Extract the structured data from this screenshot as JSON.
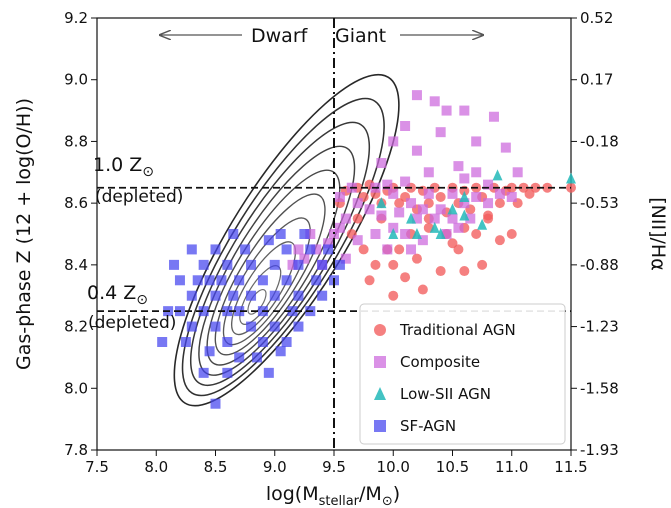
{
  "chart_data": {
    "type": "scatter",
    "title": "",
    "xlabel": "log(M",
    "xlabel_sub": "stellar",
    "xlabel_mid": "/M",
    "xlabel_sym": "⊙",
    "xlabel_end": ")",
    "ylabel_left": "Gas-phase Z (12 + log(O/H))",
    "ylabel_right": "[NII]/Hα",
    "xlim": [
      7.5,
      11.5
    ],
    "ylim": [
      7.8,
      9.2
    ],
    "x_ticks": [
      "7.5",
      "8.0",
      "8.5",
      "9.0",
      "9.5",
      "10.0",
      "10.5",
      "11.0",
      "11.5"
    ],
    "y_ticks_left": [
      "7.8",
      "8.0",
      "8.2",
      "8.4",
      "8.6",
      "8.8",
      "9.0",
      "9.2"
    ],
    "y_ticks_right": [
      "-1.93",
      "-1.58",
      "-1.23",
      "-0.88",
      "-0.53",
      "-0.18",
      "0.17",
      "0.52"
    ],
    "vline_x": 9.5,
    "hlines": [
      8.65,
      8.25
    ],
    "annotations": {
      "dwarf": "Dwarf",
      "giant": "Giant",
      "solar1_value": "1.0 Z",
      "solar1_sym": "⊙",
      "solar1_note": "(depleted)",
      "solar04_value": "0.4 Z",
      "solar04_sym": "⊙",
      "solar04_note": "(depleted)"
    },
    "legend_position": "lower-right",
    "colors": {
      "traditional": "#f25c5c",
      "composite": "#cc66dd",
      "lowsii": "#22b8b8",
      "sfagn": "#4444ee",
      "contour": "#111111"
    },
    "series": [
      {
        "name": "Traditional AGN",
        "marker": "circle",
        "points": [
          [
            9.55,
            8.6
          ],
          [
            9.6,
            8.64
          ],
          [
            9.7,
            8.65
          ],
          [
            9.75,
            8.62
          ],
          [
            9.8,
            8.66
          ],
          [
            9.85,
            8.63
          ],
          [
            9.9,
            8.6
          ],
          [
            9.95,
            8.64
          ],
          [
            10.0,
            8.65
          ],
          [
            10.05,
            8.6
          ],
          [
            10.1,
            8.62
          ],
          [
            10.15,
            8.65
          ],
          [
            10.2,
            8.58
          ],
          [
            10.25,
            8.64
          ],
          [
            10.3,
            8.6
          ],
          [
            10.35,
            8.65
          ],
          [
            10.4,
            8.62
          ],
          [
            10.45,
            8.57
          ],
          [
            10.5,
            8.65
          ],
          [
            10.55,
            8.6
          ],
          [
            10.6,
            8.64
          ],
          [
            10.65,
            8.58
          ],
          [
            10.7,
            8.65
          ],
          [
            10.75,
            8.62
          ],
          [
            10.8,
            8.56
          ],
          [
            10.85,
            8.65
          ],
          [
            10.9,
            8.6
          ],
          [
            10.95,
            8.64
          ],
          [
            11.0,
            8.65
          ],
          [
            11.05,
            8.6
          ],
          [
            11.1,
            8.65
          ],
          [
            11.15,
            8.63
          ],
          [
            11.2,
            8.65
          ],
          [
            11.3,
            8.65
          ],
          [
            11.5,
            8.65
          ],
          [
            10.6,
            8.52
          ],
          [
            10.7,
            8.5
          ],
          [
            10.9,
            8.48
          ],
          [
            11.0,
            8.5
          ],
          [
            10.45,
            8.5
          ],
          [
            10.3,
            8.52
          ],
          [
            10.15,
            8.5
          ],
          [
            10.05,
            8.45
          ],
          [
            10.0,
            8.4
          ],
          [
            9.95,
            8.45
          ],
          [
            10.2,
            8.42
          ],
          [
            10.4,
            8.38
          ],
          [
            10.55,
            8.45
          ],
          [
            10.8,
            8.55
          ],
          [
            9.85,
            8.4
          ],
          [
            9.75,
            8.45
          ],
          [
            9.65,
            8.5
          ],
          [
            9.8,
            8.35
          ],
          [
            10.1,
            8.36
          ],
          [
            10.6,
            8.38
          ],
          [
            10.0,
            8.3
          ],
          [
            10.25,
            8.32
          ],
          [
            10.75,
            8.4
          ],
          [
            10.3,
            8.55
          ],
          [
            10.5,
            8.47
          ],
          [
            9.9,
            8.55
          ],
          [
            9.7,
            8.55
          ]
        ]
      },
      {
        "name": "Composite",
        "marker": "square",
        "points": [
          [
            10.2,
            8.95
          ],
          [
            10.35,
            8.93
          ],
          [
            10.45,
            8.9
          ],
          [
            10.6,
            8.9
          ],
          [
            10.85,
            8.88
          ],
          [
            10.1,
            8.85
          ],
          [
            10.4,
            8.83
          ],
          [
            10.7,
            8.8
          ],
          [
            10.95,
            8.78
          ],
          [
            10.0,
            8.8
          ],
          [
            10.2,
            8.77
          ],
          [
            10.55,
            8.72
          ],
          [
            10.3,
            8.7
          ],
          [
            10.6,
            8.68
          ],
          [
            10.8,
            8.66
          ],
          [
            10.1,
            8.67
          ],
          [
            9.95,
            8.66
          ],
          [
            9.9,
            8.73
          ],
          [
            10.0,
            8.63
          ],
          [
            10.3,
            8.63
          ],
          [
            10.5,
            8.63
          ],
          [
            10.7,
            8.62
          ],
          [
            10.9,
            8.63
          ],
          [
            11.0,
            8.62
          ],
          [
            10.15,
            8.6
          ],
          [
            10.25,
            8.58
          ],
          [
            10.4,
            8.58
          ],
          [
            10.6,
            8.6
          ],
          [
            10.8,
            8.6
          ],
          [
            10.05,
            8.57
          ],
          [
            10.2,
            8.55
          ],
          [
            10.35,
            8.55
          ],
          [
            10.5,
            8.55
          ],
          [
            10.65,
            8.55
          ],
          [
            9.9,
            8.56
          ],
          [
            9.8,
            8.58
          ],
          [
            9.7,
            8.6
          ],
          [
            9.6,
            8.55
          ],
          [
            9.55,
            8.52
          ],
          [
            9.5,
            8.5
          ],
          [
            9.45,
            8.47
          ],
          [
            9.35,
            8.45
          ],
          [
            9.25,
            8.42
          ],
          [
            9.15,
            8.4
          ],
          [
            9.4,
            8.4
          ],
          [
            9.6,
            8.42
          ],
          [
            9.7,
            8.48
          ],
          [
            9.85,
            8.5
          ],
          [
            10.0,
            8.52
          ],
          [
            10.1,
            8.5
          ],
          [
            10.25,
            8.48
          ],
          [
            10.45,
            8.5
          ],
          [
            10.55,
            8.52
          ],
          [
            9.3,
            8.5
          ],
          [
            9.55,
            8.62
          ],
          [
            9.65,
            8.65
          ],
          [
            9.2,
            8.45
          ],
          [
            9.85,
            8.65
          ],
          [
            10.7,
            8.7
          ],
          [
            11.05,
            8.7
          ],
          [
            9.95,
            8.45
          ],
          [
            10.15,
            8.45
          ]
        ]
      },
      {
        "name": "Low-SII AGN",
        "marker": "triangle",
        "points": [
          [
            9.9,
            8.6
          ],
          [
            10.15,
            8.55
          ],
          [
            10.4,
            8.5
          ],
          [
            10.5,
            8.58
          ],
          [
            10.6,
            8.56
          ],
          [
            10.75,
            8.53
          ],
          [
            10.88,
            8.69
          ],
          [
            11.5,
            8.68
          ],
          [
            10.2,
            8.5
          ],
          [
            10.0,
            8.5
          ],
          [
            10.6,
            8.62
          ],
          [
            10.35,
            8.52
          ]
        ]
      },
      {
        "name": "SF-AGN",
        "marker": "square",
        "points": [
          [
            8.3,
            8.45
          ],
          [
            8.4,
            8.4
          ],
          [
            8.5,
            8.45
          ],
          [
            8.6,
            8.4
          ],
          [
            8.7,
            8.35
          ],
          [
            8.8,
            8.4
          ],
          [
            8.9,
            8.35
          ],
          [
            9.0,
            8.4
          ],
          [
            9.1,
            8.45
          ],
          [
            9.2,
            8.4
          ],
          [
            9.3,
            8.45
          ],
          [
            9.4,
            8.4
          ],
          [
            8.2,
            8.35
          ],
          [
            8.3,
            8.3
          ],
          [
            8.4,
            8.25
          ],
          [
            8.5,
            8.3
          ],
          [
            8.6,
            8.25
          ],
          [
            8.7,
            8.25
          ],
          [
            8.8,
            8.3
          ],
          [
            8.9,
            8.25
          ],
          [
            9.0,
            8.3
          ],
          [
            9.1,
            8.35
          ],
          [
            9.2,
            8.3
          ],
          [
            9.3,
            8.25
          ],
          [
            9.4,
            8.3
          ],
          [
            8.1,
            8.25
          ],
          [
            8.2,
            8.25
          ],
          [
            8.3,
            8.2
          ],
          [
            8.5,
            8.2
          ],
          [
            8.6,
            8.15
          ],
          [
            8.8,
            8.2
          ],
          [
            9.0,
            8.2
          ],
          [
            9.2,
            8.2
          ],
          [
            8.25,
            8.15
          ],
          [
            8.45,
            8.12
          ],
          [
            8.7,
            8.1
          ],
          [
            8.9,
            8.15
          ],
          [
            9.05,
            8.12
          ],
          [
            8.5,
            7.95
          ],
          [
            8.6,
            8.05
          ],
          [
            8.4,
            8.05
          ],
          [
            8.95,
            8.05
          ],
          [
            9.15,
            8.25
          ],
          [
            9.35,
            8.35
          ],
          [
            9.45,
            8.45
          ],
          [
            8.35,
            8.35
          ],
          [
            8.55,
            8.35
          ],
          [
            8.75,
            8.45
          ],
          [
            8.95,
            8.48
          ],
          [
            9.05,
            8.5
          ],
          [
            9.25,
            8.5
          ],
          [
            8.65,
            8.5
          ],
          [
            8.15,
            8.4
          ],
          [
            8.05,
            8.15
          ],
          [
            9.5,
            8.35
          ],
          [
            9.55,
            8.4
          ],
          [
            8.85,
            8.1
          ],
          [
            9.1,
            8.15
          ],
          [
            8.45,
            8.35
          ],
          [
            8.65,
            8.3
          ]
        ]
      }
    ],
    "contour_count": 10
  }
}
